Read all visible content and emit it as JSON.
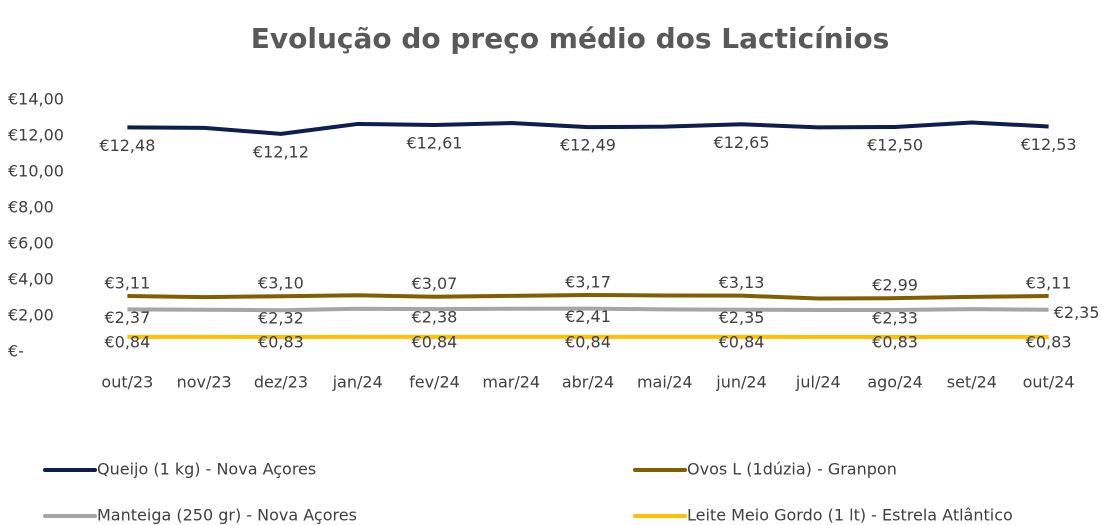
{
  "chart_data": {
    "type": "line",
    "title": "Evolução do preço médio dos Lacticínios",
    "categories": [
      "out/23",
      "nov/23",
      "dez/23",
      "jan/24",
      "fev/24",
      "mar/24",
      "abr/24",
      "mai/24",
      "jun/24",
      "jul/24",
      "ago/24",
      "set/24",
      "out/24"
    ],
    "ylim": [
      0,
      14
    ],
    "yticks": [
      {
        "value": 0,
        "label": "€-"
      },
      {
        "value": 2,
        "label": "€2,00"
      },
      {
        "value": 4,
        "label": "€4,00"
      },
      {
        "value": 6,
        "label": "€6,00"
      },
      {
        "value": 8,
        "label": "€8,00"
      },
      {
        "value": 10,
        "label": "€10,00"
      },
      {
        "value": 12,
        "label": "€12,00"
      },
      {
        "value": 14,
        "label": "€14,00"
      }
    ],
    "grid": false,
    "legend": "bottom",
    "series": [
      {
        "name": "Queijo (1 kg) - Nova Açores",
        "color": "#0e1f4f",
        "values": [
          12.48,
          12.45,
          12.12,
          12.67,
          12.61,
          12.72,
          12.49,
          12.52,
          12.65,
          12.48,
          12.5,
          12.75,
          12.53
        ],
        "value_labels": [
          "€12,48",
          null,
          "€12,12",
          null,
          "€12,61",
          null,
          "€12,49",
          null,
          "€12,65",
          null,
          "€12,50",
          null,
          "€12,53"
        ]
      },
      {
        "name": "Ovos L (1dúzia)  - Granpon",
        "color": "#7f6000",
        "values": [
          3.11,
          3.05,
          3.1,
          3.15,
          3.07,
          3.12,
          3.17,
          3.14,
          3.13,
          2.97,
          2.99,
          3.06,
          3.11
        ],
        "value_labels": [
          "€3,11",
          null,
          "€3,10",
          null,
          "€3,07",
          null,
          "€3,17",
          null,
          "€3,13",
          null,
          "€2,99",
          null,
          "€3,11"
        ]
      },
      {
        "name": "Manteiga (250 gr) - Nova Açores",
        "color": "#a6a6a6",
        "values": [
          2.37,
          2.35,
          2.32,
          2.4,
          2.38,
          2.4,
          2.41,
          2.37,
          2.35,
          2.33,
          2.33,
          2.38,
          2.35
        ],
        "value_labels": [
          "€2,37",
          null,
          "€2,32",
          null,
          "€2,38",
          null,
          "€2,41",
          null,
          "€2,35",
          null,
          "€2,33",
          null,
          "€2,35"
        ]
      },
      {
        "name": "Leite Meio Gordo (1 lt) - Estrela Atlântico",
        "color": "#ffc000",
        "values": [
          0.84,
          0.84,
          0.83,
          0.84,
          0.84,
          0.84,
          0.84,
          0.84,
          0.84,
          0.83,
          0.83,
          0.83,
          0.83
        ],
        "value_labels": [
          "€0,84",
          null,
          "€0,83",
          null,
          "€0,84",
          null,
          "€0,84",
          null,
          "€0,84",
          null,
          "€0,83",
          null,
          "€0,83"
        ]
      }
    ]
  }
}
